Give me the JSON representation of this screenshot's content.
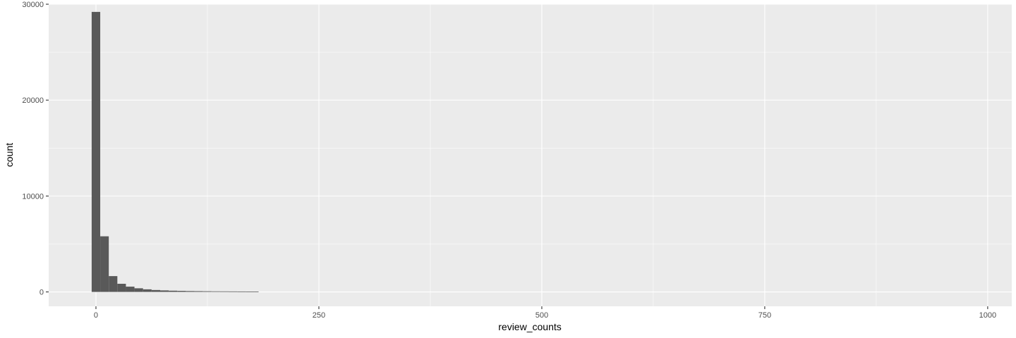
{
  "chart_data": {
    "type": "bar",
    "title": "",
    "xlabel": "review_counts",
    "ylabel": "count",
    "xlim": [
      -53,
      1027
    ],
    "ylim": [
      -1500,
      30000
    ],
    "x_ticks": [
      0,
      250,
      500,
      750,
      1000
    ],
    "x_tick_labels": [
      "0",
      "250",
      "500",
      "750",
      "1000"
    ],
    "y_ticks": [
      0,
      10000,
      20000,
      30000
    ],
    "y_tick_labels": [
      "0",
      "10000",
      "20000",
      "30000"
    ],
    "grid": true,
    "bin_width": 9.6,
    "bins": [
      {
        "x_start": -4.8,
        "x_end": 4.8,
        "count": 29200
      },
      {
        "x_start": 4.8,
        "x_end": 14.4,
        "count": 5800
      },
      {
        "x_start": 14.4,
        "x_end": 24.0,
        "count": 1650
      },
      {
        "x_start": 24.0,
        "x_end": 33.6,
        "count": 850
      },
      {
        "x_start": 33.6,
        "x_end": 43.2,
        "count": 550
      },
      {
        "x_start": 43.2,
        "x_end": 52.8,
        "count": 380
      },
      {
        "x_start": 52.8,
        "x_end": 62.4,
        "count": 270
      },
      {
        "x_start": 62.4,
        "x_end": 72.0,
        "count": 200
      },
      {
        "x_start": 72.0,
        "x_end": 81.6,
        "count": 160
      },
      {
        "x_start": 81.6,
        "x_end": 91.2,
        "count": 130
      },
      {
        "x_start": 91.2,
        "x_end": 100.8,
        "count": 110
      },
      {
        "x_start": 100.8,
        "x_end": 110.4,
        "count": 90
      },
      {
        "x_start": 110.4,
        "x_end": 120.0,
        "count": 80
      },
      {
        "x_start": 120.0,
        "x_end": 129.6,
        "count": 70
      },
      {
        "x_start": 129.6,
        "x_end": 139.2,
        "count": 60
      },
      {
        "x_start": 139.2,
        "x_end": 148.8,
        "count": 55
      },
      {
        "x_start": 148.8,
        "x_end": 158.4,
        "count": 50
      },
      {
        "x_start": 158.4,
        "x_end": 168.0,
        "count": 45
      },
      {
        "x_start": 168.0,
        "x_end": 177.6,
        "count": 40
      },
      {
        "x_start": 177.6,
        "x_end": 182.4,
        "count": 35
      }
    ],
    "colors": {
      "panel_background": "#ebebeb",
      "grid_major": "#ffffff",
      "bar_fill": "#595959"
    }
  }
}
